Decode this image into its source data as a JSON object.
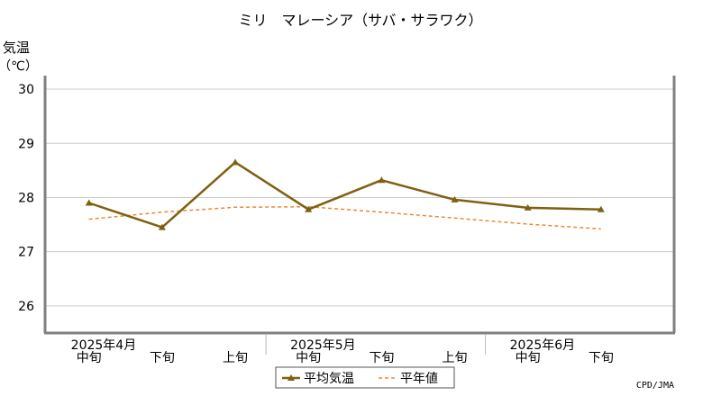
{
  "chart_data": {
    "type": "line",
    "title": "ミリ　マレーシア（サバ・サラワク）",
    "ylabel": "気温",
    "yunit": "（℃）",
    "ylim": [
      25.5,
      30.2
    ],
    "yticks": [
      "26",
      "27",
      "28",
      "29",
      "30"
    ],
    "categories": [
      "中旬",
      "下旬",
      "上旬",
      "中旬",
      "下旬",
      "上旬",
      "中旬",
      "下旬"
    ],
    "month_labels": [
      {
        "label": "2025年4月",
        "at": 0
      },
      {
        "label": "2025年5月",
        "at": 3
      },
      {
        "label": "2025年6月",
        "at": 6
      }
    ],
    "series": [
      {
        "name": "平均気温",
        "color": "#7f6010",
        "marker": "triangle",
        "values": [
          27.9,
          27.45,
          28.65,
          27.78,
          28.32,
          27.96,
          27.81,
          27.78
        ]
      },
      {
        "name": "平年値",
        "color": "#ee8833",
        "style": "dashed",
        "values": [
          27.6,
          27.73,
          27.82,
          27.83,
          27.73,
          27.62,
          27.51,
          27.42
        ]
      }
    ],
    "grid": true,
    "legend_position": "bottom-center",
    "credit": "CPD/JMA"
  }
}
